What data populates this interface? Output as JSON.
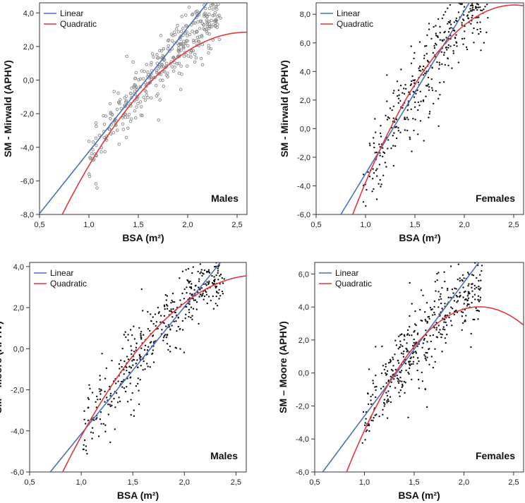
{
  "colors": {
    "linear": "#4a6fbf",
    "quadratic": "#e0383e",
    "points_open": "#8a8a8a",
    "points_solid": "#111111"
  },
  "legend": {
    "linear": "Linear",
    "quadratic": "Quadratic"
  },
  "chart_data": [
    {
      "type": "scatter",
      "panel_label": "Males",
      "xlabel": "BSA (m²)",
      "ylabel": "SM - Mirwald (APHV)",
      "xlim": [
        0.5,
        2.6
      ],
      "ylim": [
        -8.0,
        4.6
      ],
      "xticks": [
        "0,5",
        "1,0",
        "1,5",
        "2,0",
        "2,5"
      ],
      "yticks": [
        "-8,0",
        "-6,0",
        "-4,0",
        "-2,0",
        "0,0",
        "2,0",
        "4,0"
      ],
      "marker": "open",
      "linear_fit": [
        [
          0.5,
          -7.95
        ],
        [
          2.2,
          4.6
        ]
      ],
      "quadratic_fit": {
        "x_range": [
          0.73,
          2.6
        ],
        "points": [
          [
            0.73,
            -8.0
          ],
          [
            1.5,
            -0.9
          ],
          [
            2.6,
            2.85
          ]
        ]
      },
      "cloud": {
        "n": 380,
        "x_range": [
          0.78,
          2.35
        ],
        "noise": 0.95
      }
    },
    {
      "type": "scatter",
      "panel_label": "Females",
      "xlabel": "BSA (m²)",
      "ylabel": "SM - Mirwald (APHV)",
      "xlim": [
        0.5,
        2.6
      ],
      "ylim": [
        -6.0,
        8.8
      ],
      "xticks": [
        "0,5",
        "1,0",
        "1,5",
        "2,0",
        "2,5"
      ],
      "yticks": [
        "-6,0",
        "-4,0",
        "-2,0",
        "0,0",
        "2,0",
        "4,0",
        "6,0",
        "8,0"
      ],
      "marker": "solid",
      "linear_fit": [
        [
          0.75,
          -6.0
        ],
        [
          2.05,
          8.8
        ]
      ],
      "quadratic_fit": {
        "x_range": [
          0.87,
          2.6
        ],
        "points": [
          [
            0.87,
            -6.0
          ],
          [
            1.5,
            3.1
          ],
          [
            2.6,
            8.6
          ]
        ]
      },
      "cloud": {
        "n": 420,
        "x_range": [
          0.78,
          2.25
        ],
        "noise": 1.5
      }
    },
    {
      "type": "scatter",
      "panel_label": "Males",
      "xlabel": "BSA (m²)",
      "ylabel": "SM – Moore (APHV)",
      "xlim": [
        0.5,
        2.6
      ],
      "ylim": [
        -6.0,
        4.2
      ],
      "xticks": [
        "0,5",
        "1,0",
        "1,5",
        "2,0",
        "2,5"
      ],
      "yticks": [
        "-6,0",
        "-4,0",
        "-2,0",
        "0,0",
        "2,0",
        "4,0"
      ],
      "marker": "solid",
      "linear_fit": [
        [
          0.7,
          -6.0
        ],
        [
          2.35,
          4.2
        ]
      ],
      "quadratic_fit": {
        "x_range": [
          0.82,
          2.6
        ],
        "points": [
          [
            0.82,
            -6.0
          ],
          [
            1.5,
            -0.35
          ],
          [
            2.6,
            3.55
          ]
        ]
      },
      "cloud": {
        "n": 450,
        "x_range": [
          0.8,
          2.4
        ],
        "noise": 0.9
      }
    },
    {
      "type": "scatter",
      "panel_label": "Females",
      "xlabel": "BSA (m²)",
      "ylabel": "SM – Moore (APHV)",
      "xlim": [
        0.5,
        2.6
      ],
      "ylim": [
        -6.0,
        6.7
      ],
      "xticks": [
        "0,5",
        "1,0",
        "1,5",
        "2,0",
        "2,5"
      ],
      "yticks": [
        "-6,0",
        "-4,0",
        "-2,0",
        "0,0",
        "2,0",
        "4,0",
        "6,0"
      ],
      "marker": "solid",
      "linear_fit": [
        [
          0.58,
          -6.0
        ],
        [
          2.15,
          6.7
        ]
      ],
      "quadratic_fit": {
        "x_range": [
          0.82,
          2.6
        ],
        "points": [
          [
            0.82,
            -6.0
          ],
          [
            1.5,
            1.6
          ],
          [
            2.6,
            2.9
          ]
        ]
      },
      "cloud": {
        "n": 440,
        "x_range": [
          0.78,
          2.2
        ],
        "noise": 1.4
      }
    }
  ]
}
